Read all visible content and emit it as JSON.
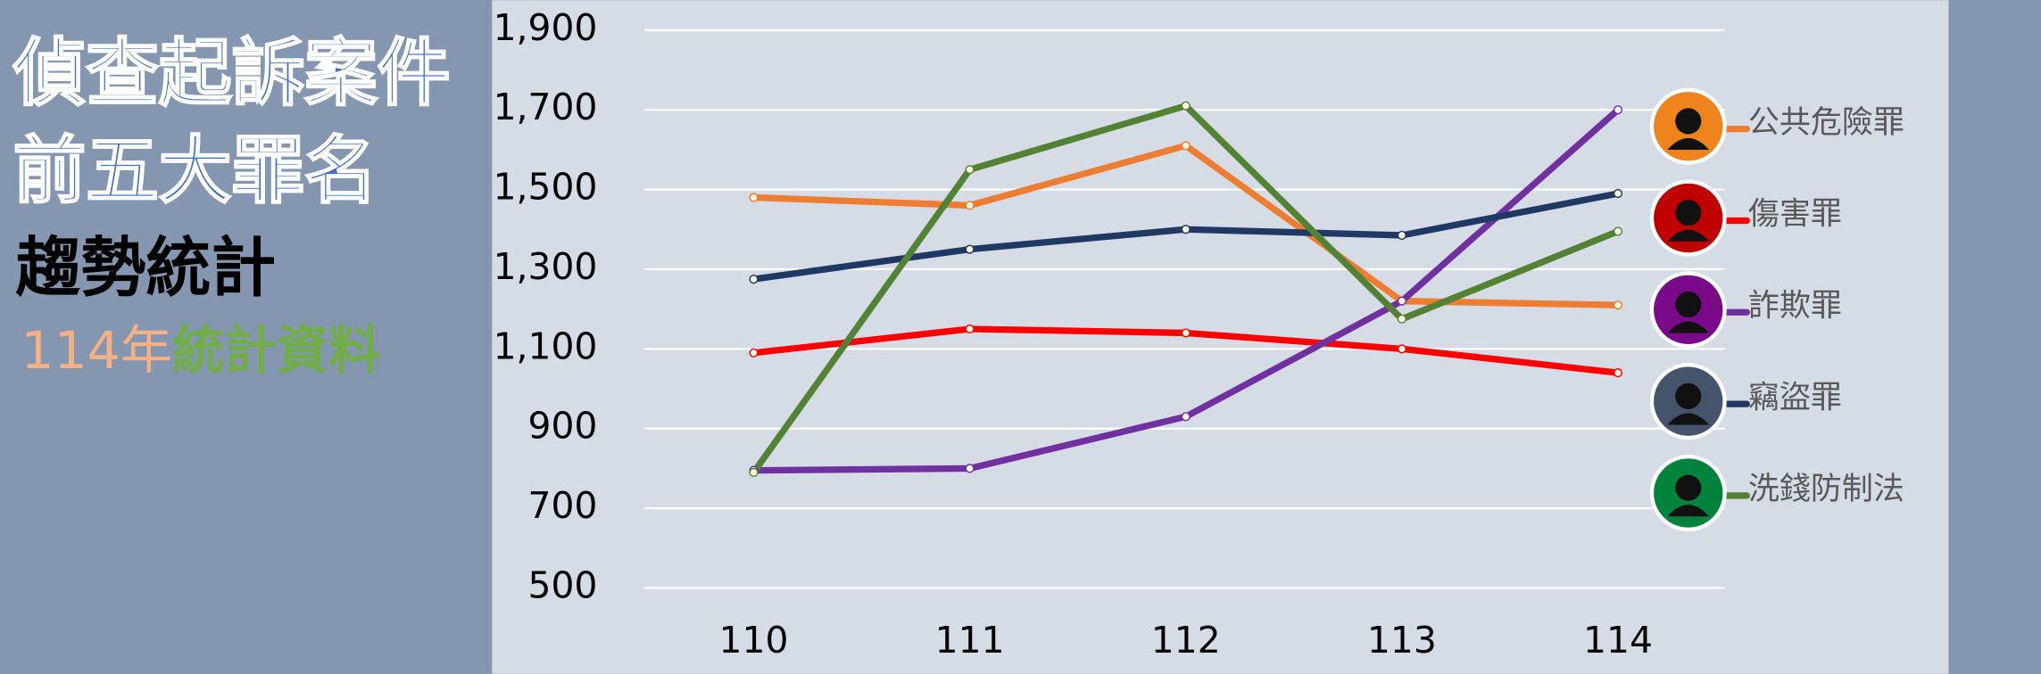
{
  "chart_data": {
    "type": "line",
    "title_lines": [
      "偵查起訴案件",
      "前五大罪名"
    ],
    "subtitle": "趨勢統計",
    "note_year": "114年",
    "note_text": "統計資料",
    "categories": [
      "110",
      "111",
      "112",
      "113",
      "114"
    ],
    "series": [
      {
        "name": "公共危險罪",
        "color": "#ed7d31",
        "icon_color": "#f0841c",
        "values": [
          1480,
          1460,
          1610,
          1220,
          1210
        ]
      },
      {
        "name": "傷害罪",
        "color": "#ff0000",
        "icon_color": "#c00000",
        "values": [
          1090,
          1150,
          1140,
          1100,
          1040
        ]
      },
      {
        "name": "詐欺罪",
        "color": "#7030a0",
        "icon_color": "#7a0a8a",
        "values": [
          795,
          800,
          930,
          1220,
          1700
        ]
      },
      {
        "name": "竊盜罪",
        "color": "#203864",
        "icon_color": "#44546a",
        "values": [
          1275,
          1350,
          1400,
          1385,
          1490
        ]
      },
      {
        "name": "洗錢防制法",
        "color": "#548235",
        "icon_color": "#00843d",
        "values": [
          790,
          1550,
          1710,
          1175,
          1395
        ]
      }
    ],
    "ylim": [
      500,
      1900
    ],
    "yticks": [
      500,
      700,
      900,
      {
        "value": 1100,
        "label": "1,100"
      },
      {
        "value": 1300,
        "label": "1,300"
      },
      {
        "value": 1500,
        "label": "1,500"
      },
      {
        "value": 1700,
        "label": "1,700"
      },
      {
        "value": 1900,
        "label": "1,900"
      }
    ],
    "grid": true
  }
}
